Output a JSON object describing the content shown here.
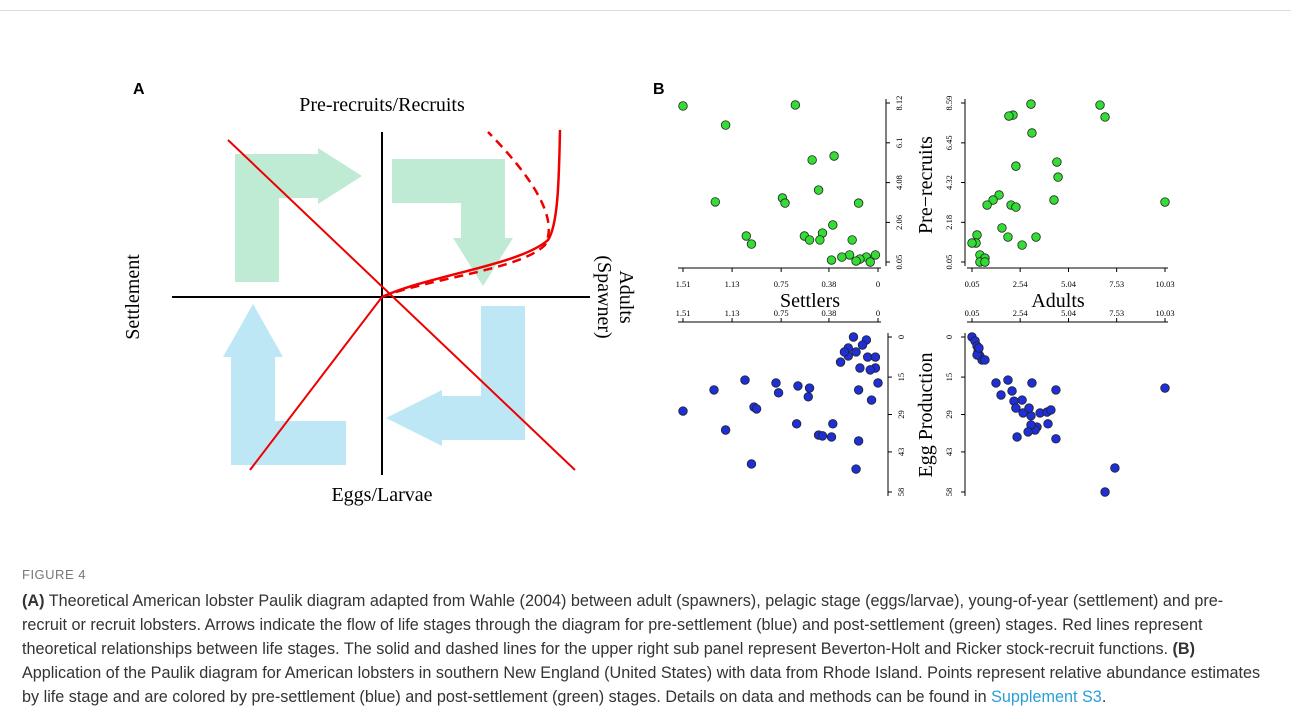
{
  "figure": {
    "label": "FIGURE 4",
    "caption": [
      "(A)",
      " Theoretical American lobster Paulik diagram adapted from Wahle (2004) between adult (spawners), pelagic stage (eggs/larvae), young-of-year (settlement) and pre-recruit or recruit lobsters. Arrows indicate the flow of life stages through the diagram for pre-settlement (blue) and post-settlement (green) stages. Red lines represent theoretical relationships between life stages. The solid and dashed lines for the upper right sub panel represent Beverton-Holt and Ricker stock-recruit functions. ",
      "(B)",
      " Application of the Paulik diagram for American lobsters in southern New England (United States) with data from Rhode Island. Points represent relative abundance estimates by life stage and are colored by pre-settlement (blue) and post-settlement (green) stages. Details on data and methods can be found in ",
      "Supplement S3",
      "."
    ]
  },
  "panel_a": {
    "label": "A",
    "top": "Pre-recruits/Recruits",
    "left": "Settlement",
    "right": [
      "Adults",
      "(Spawner)"
    ],
    "bottom": "Eggs/Larvae"
  },
  "panel_b": {
    "label": "B"
  },
  "chart_data": [
    {
      "type": "scatter",
      "x_label": "Settlers",
      "color": "#33dd33",
      "x": [
        1.51,
        0.64,
        1.18,
        0.34,
        0.51,
        0.46,
        1.26,
        0.74,
        0.72,
        0.15,
        1.02,
        0.98,
        0.43,
        0.35,
        0.57,
        0.45,
        0.53,
        0.2,
        0.02,
        0.09,
        0.14,
        0.17,
        0.22,
        0.28,
        0.36,
        0.06
      ],
      "values": [
        7.97,
        8.02,
        7.0,
        5.43,
        5.23,
        3.7,
        3.1,
        3.3,
        3.04,
        3.04,
        1.37,
        0.96,
        1.52,
        1.93,
        1.37,
        1.17,
        1.17,
        1.17,
        0.41,
        0.3,
        0.2,
        0.1,
        0.41,
        0.3,
        0.15,
        0.05
      ],
      "xlim": [
        1.51,
        0
      ],
      "xticks": [
        1.51,
        1.13,
        0.75,
        0.38,
        0
      ],
      "ylim": [
        0.05,
        8.12
      ],
      "yticks": [
        0.05,
        2.06,
        4.08,
        6.1,
        8.12
      ]
    },
    {
      "type": "scatter",
      "x_label": "Adults",
      "y_label": "Pre−recruits",
      "color": "#33dd33",
      "x": [
        3.1,
        2.17,
        1.96,
        3.15,
        6.93,
        6.67,
        4.44,
        4.5,
        2.32,
        1.45,
        1.14,
        0.83,
        2.07,
        2.32,
        4.29,
        0.31,
        0.26,
        0.05,
        0.46,
        0.72,
        0.46,
        0.72,
        1.91,
        1.6,
        2.64,
        3.36,
        10.03
      ],
      "values": [
        8.53,
        7.94,
        7.89,
        6.98,
        7.84,
        8.48,
        5.42,
        4.61,
        5.2,
        3.65,
        3.38,
        3.11,
        3.11,
        3.0,
        3.38,
        1.5,
        1.07,
        1.07,
        0.43,
        0.26,
        0.05,
        0.05,
        1.39,
        1.88,
        0.96,
        1.39,
        3.27
      ],
      "xlim": [
        0.05,
        10.03
      ],
      "xticks": [
        0.05,
        2.54,
        5.04,
        7.53,
        10.03
      ],
      "ylim": [
        0.05,
        8.59
      ],
      "yticks": [
        0.05,
        2.18,
        4.32,
        6.45,
        8.59
      ]
    },
    {
      "type": "scatter",
      "color": "#1f2fd6",
      "x": [
        0.19,
        0.09,
        0.23,
        0.12,
        0.17,
        0.08,
        0.02,
        0.02,
        0,
        0.15,
        0.05,
        1.51,
        1.27,
        1.03,
        1.18,
        0.98,
        0.79,
        0.77,
        0.96,
        0.94,
        0.62,
        0.53,
        0.54,
        0.63,
        0.46,
        0.43,
        0.36,
        0.35,
        0.15,
        0.17,
        0.23,
        0.26,
        0.29,
        0.14,
        0.06
      ],
      "values": [
        0,
        1.1,
        4.1,
        3.0,
        5.6,
        7.5,
        7.5,
        11.6,
        17.2,
        19.8,
        23.6,
        27.7,
        19.8,
        16.1,
        34.8,
        47.5,
        17.2,
        20.9,
        26.2,
        26.9,
        18.3,
        19.1,
        22.4,
        32.5,
        36.7,
        37.0,
        37.4,
        32.5,
        38.9,
        49.4,
        7.1,
        5.6,
        9.4,
        11.6,
        12.3
      ],
      "xlim": [
        1.51,
        0
      ],
      "xticks": [
        1.51,
        1.13,
        0.75,
        0.38,
        0
      ],
      "ylim": [
        58,
        0
      ],
      "yticks": [
        0,
        15,
        29,
        43,
        58
      ]
    },
    {
      "type": "scatter",
      "y_label": "Egg Production",
      "color": "#1f2fd6",
      "x": [
        0.05,
        0.21,
        0.31,
        0.36,
        0.46,
        0.57,
        0.72,
        0.31,
        0.41,
        1.29,
        1.91,
        3.15,
        1.55,
        2.12,
        2.64,
        2.22,
        2.32,
        2.69,
        3.1,
        3.57,
        3.93,
        4.13,
        4.39,
        3.41,
        4.39,
        3.31,
        3.1,
        3.0,
        10.03,
        7.44,
        6.93,
        2.38,
        2.95,
        3.98
      ],
      "values": [
        0,
        1.5,
        3.4,
        5.6,
        7.1,
        8.6,
        8.6,
        6.7,
        4.1,
        17.2,
        16.1,
        17.2,
        21.7,
        20.2,
        23.6,
        24.0,
        26.6,
        28.4,
        29.5,
        28.4,
        28.1,
        27.3,
        19.8,
        33.7,
        38.1,
        34.8,
        32.9,
        26.6,
        19.1,
        49.0,
        58,
        37.4,
        35.5,
        32.5
      ],
      "xlim": [
        0.05,
        10.03
      ],
      "xticks": [
        0.05,
        2.54,
        5.04,
        7.53,
        10.03
      ],
      "ylim": [
        58,
        0
      ],
      "yticks": [
        0,
        15,
        29,
        43,
        58
      ]
    }
  ]
}
